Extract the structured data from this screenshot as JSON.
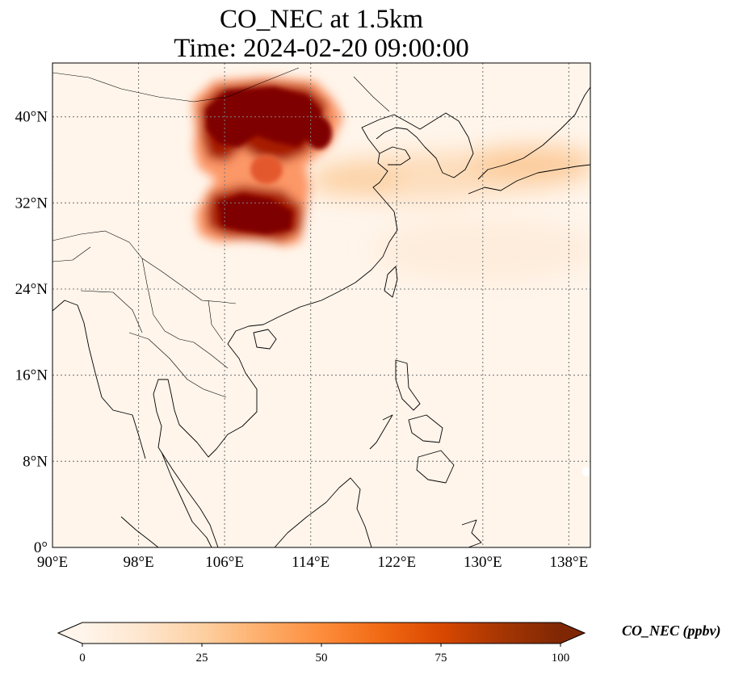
{
  "title_line1": "CO_NEC at 1.5km",
  "title_line2": "Time: 2024-02-20 09:00:00",
  "map": {
    "extent_lon": [
      90,
      140
    ],
    "extent_lat": [
      0,
      45
    ],
    "x_ticks": [
      {
        "value": 90,
        "label": "90°E"
      },
      {
        "value": 98,
        "label": "98°E"
      },
      {
        "value": 106,
        "label": "106°E"
      },
      {
        "value": 114,
        "label": "114°E"
      },
      {
        "value": 122,
        "label": "122°E"
      },
      {
        "value": 130,
        "label": "130°E"
      },
      {
        "value": 138,
        "label": "138°E"
      }
    ],
    "y_ticks": [
      {
        "value": 0,
        "label": "0°"
      },
      {
        "value": 8,
        "label": "8°N"
      },
      {
        "value": 16,
        "label": "16°N"
      },
      {
        "value": 24,
        "label": "24°N"
      },
      {
        "value": 32,
        "label": "32°N"
      },
      {
        "value": 40,
        "label": "40°N"
      }
    ],
    "gridlines": true,
    "gridline_style": "dotted",
    "colors": {
      "background": "#fff5eb",
      "coastline": "#000000",
      "gridline": "#7a7a7a"
    }
  },
  "colorbar": {
    "label": "CO_NEC (ppbv)",
    "min": 0,
    "max": 100,
    "extend": "both",
    "ticks": [
      {
        "value": 0,
        "label": "0"
      },
      {
        "value": 25,
        "label": "25"
      },
      {
        "value": 50,
        "label": "50"
      },
      {
        "value": 75,
        "label": "75"
      },
      {
        "value": 100,
        "label": "100"
      }
    ],
    "stops": [
      "#fff5eb",
      "#fee6ce",
      "#fdd0a2",
      "#fdae6b",
      "#fd8d3c",
      "#f16913",
      "#d94801",
      "#a63603",
      "#7f2704"
    ]
  },
  "chart_data": {
    "type": "heatmap",
    "title": "CO_NEC at 1.5km\nTime: 2024-02-20 09:00:00",
    "xlabel": "",
    "ylabel": "",
    "xlim": [
      90,
      140
    ],
    "ylim": [
      0,
      45
    ],
    "value_range": [
      0,
      100
    ],
    "units": "ppbv",
    "features": [
      {
        "region": "plume over central/northern China",
        "lon_range": [
          103,
          116
        ],
        "lat_range": [
          28.5,
          43.5
        ],
        "peak_value": 100
      },
      {
        "region": "light plume over Yellow Sea, Korea and Japan",
        "lon_range": [
          112,
          140
        ],
        "lat_range": [
          29,
          38
        ],
        "peak_value": 30
      },
      {
        "region": "background",
        "value": 2
      }
    ]
  }
}
